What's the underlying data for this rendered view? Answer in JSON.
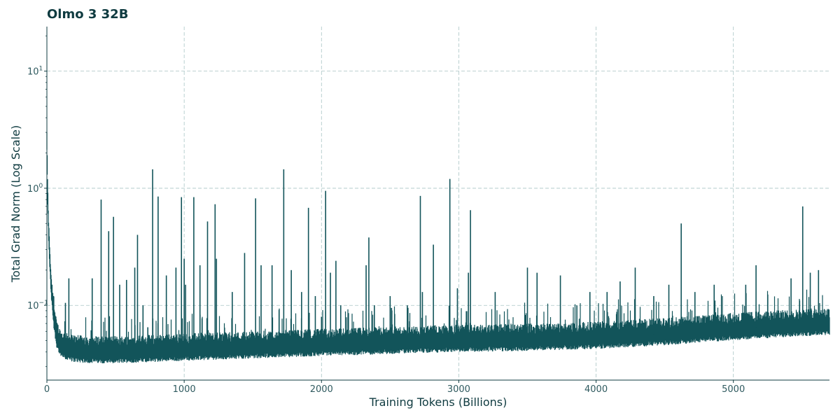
{
  "chart_data": {
    "type": "line",
    "title": "Olmo 3 32B",
    "xlabel": "Training Tokens (Billions)",
    "ylabel": "Total Grad Norm (Log Scale)",
    "y_scale": "log",
    "xlim": [
      0,
      5700
    ],
    "ylim": [
      0.023,
      24
    ],
    "x_ticks": [
      0,
      1000,
      2000,
      3000,
      4000,
      5000
    ],
    "y_ticks": [
      {
        "value": 0.1,
        "base": "10",
        "exp": "−1"
      },
      {
        "value": 1,
        "base": "10",
        "exp": "0"
      },
      {
        "value": 10,
        "base": "10",
        "exp": "1"
      }
    ],
    "grid": true,
    "line_color": "#12545a",
    "grid_color": "#a9c4c4",
    "series": [
      {
        "name": "",
        "baseline": {
          "x": [
            0,
            5,
            15,
            30,
            50,
            70,
            100,
            150,
            200,
            300,
            500,
            800,
            1000,
            1500,
            2000,
            2500,
            3000,
            3500,
            4000,
            4500,
            5000,
            5500,
            5700
          ],
          "y": [
            2.5,
            0.9,
            0.35,
            0.15,
            0.08,
            0.055,
            0.045,
            0.042,
            0.041,
            0.04,
            0.04,
            0.041,
            0.042,
            0.044,
            0.046,
            0.048,
            0.05,
            0.051,
            0.053,
            0.057,
            0.063,
            0.068,
            0.07
          ]
        },
        "spikes": {
          "x": [
            135,
            160,
            330,
            395,
            450,
            485,
            530,
            580,
            640,
            660,
            700,
            735,
            770,
            810,
            870,
            940,
            980,
            1000,
            1010,
            1070,
            1115,
            1170,
            1225,
            1235,
            1350,
            1440,
            1520,
            1560,
            1640,
            1725,
            1780,
            1855,
            1905,
            1955,
            2000,
            2030,
            2065,
            2105,
            2140,
            2325,
            2345,
            2385,
            2500,
            2625,
            2720,
            2735,
            2815,
            2935,
            2990,
            3070,
            3085,
            3265,
            3500,
            3570,
            3740,
            3860,
            3955,
            4080,
            4175,
            4285,
            4420,
            4530,
            4620,
            4720,
            4860,
            5090,
            5165,
            5420,
            5505,
            5560,
            5620
          ],
          "y": [
            0.105,
            0.17,
            0.17,
            0.8,
            0.43,
            0.57,
            0.15,
            0.165,
            0.21,
            0.4,
            0.1,
            0.065,
            1.45,
            0.85,
            0.18,
            0.21,
            0.84,
            0.25,
            0.15,
            0.84,
            0.22,
            0.52,
            0.73,
            0.25,
            0.13,
            0.28,
            0.82,
            0.22,
            0.22,
            1.45,
            0.2,
            0.13,
            0.68,
            0.12,
            0.08,
            0.95,
            0.19,
            0.24,
            0.1,
            0.22,
            0.38,
            0.1,
            0.12,
            0.1,
            0.86,
            0.13,
            0.33,
            1.2,
            0.14,
            0.19,
            0.65,
            0.13,
            0.21,
            0.19,
            0.18,
            0.1,
            0.13,
            0.13,
            0.16,
            0.21,
            0.12,
            0.15,
            0.5,
            0.13,
            0.15,
            0.15,
            0.22,
            0.17,
            0.7,
            0.19,
            0.2
          ]
        }
      }
    ]
  }
}
